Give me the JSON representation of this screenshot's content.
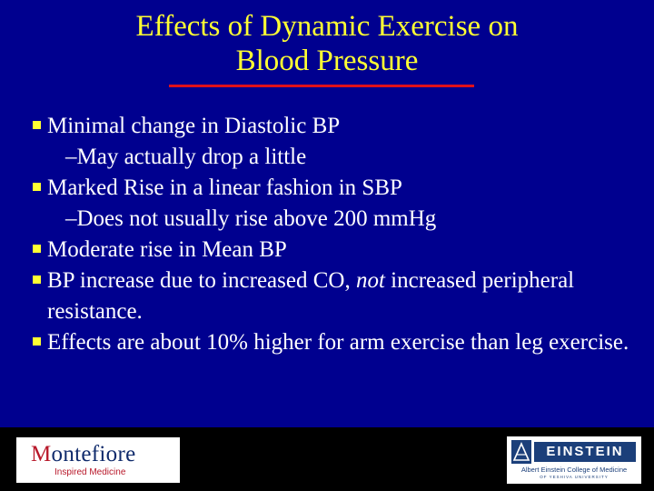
{
  "slide": {
    "title_line1": "Effects of Dynamic Exercise on",
    "title_line2": "Blood Pressure",
    "bullets": [
      {
        "text": "Minimal change in Diastolic BP",
        "sub": "–May actually drop a little"
      },
      {
        "text": "Marked Rise in a linear fashion in SBP",
        "sub": "–Does not usually rise above 200 mmHg"
      },
      {
        "text": "Moderate rise in Mean BP"
      },
      {
        "text_before": "BP increase due to increased CO, ",
        "text_italic": "not",
        "text_after": " increased peripheral resistance."
      },
      {
        "text": "Effects are about 10% higher for arm exercise than leg exercise."
      }
    ]
  },
  "footer": {
    "left_logo": {
      "first_letter": "M",
      "rest": "ontefiore",
      "tagline": "Inspired Medicine"
    },
    "right_logo": {
      "wordmark": "EINSTEIN",
      "subtitle": "Albert Einstein College of Medicine",
      "subtitle2": "OF YESHIVA UNIVERSITY"
    }
  },
  "colors": {
    "background": "#00008f",
    "title": "#ffff33",
    "rule": "#e0101a",
    "text": "#ffffff"
  }
}
